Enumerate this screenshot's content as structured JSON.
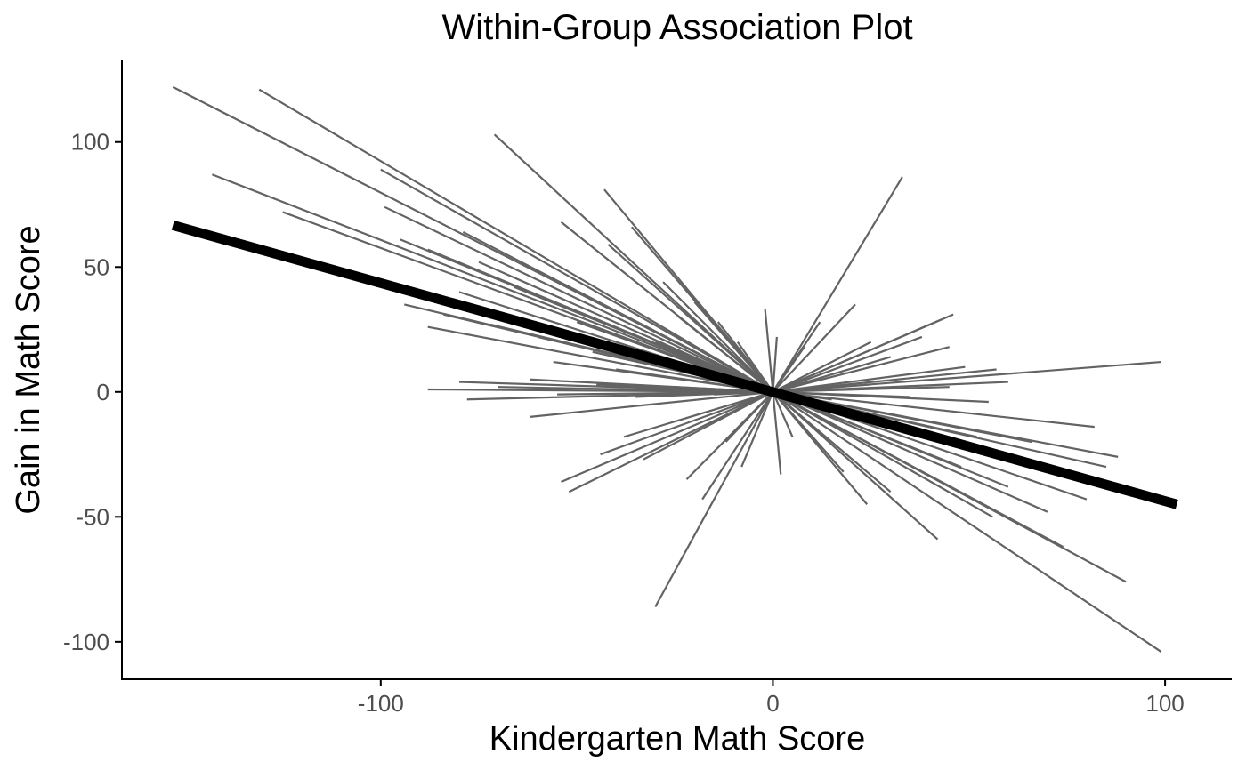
{
  "chart_data": {
    "type": "line",
    "title": "Within-Group Association Plot",
    "xlabel": "Kindergarten Math Score",
    "ylabel": "Gain in Math Score",
    "xlim": [
      -166,
      117
    ],
    "ylim": [
      -115,
      133
    ],
    "x_ticks": [
      {
        "value": -100,
        "label": "-100"
      },
      {
        "value": 0,
        "label": "0"
      },
      {
        "value": 100,
        "label": "100"
      }
    ],
    "y_ticks": [
      {
        "value": 100,
        "label": "100"
      },
      {
        "value": 50,
        "label": "50"
      },
      {
        "value": 0,
        "label": "0"
      },
      {
        "value": -50,
        "label": "-50"
      },
      {
        "value": -100,
        "label": "-100"
      }
    ],
    "grid": false,
    "legend": "none",
    "colors": {
      "group_lines": "#636363",
      "overall_line": "#000000",
      "axis": "#000000",
      "tick_text": "#4d4d4d"
    },
    "overall_line": {
      "x": [
        -153,
        103
      ],
      "y": [
        66.7,
        -45
      ]
    },
    "group_lines": [
      {
        "x": [
          -153,
          0
        ],
        "y": [
          122,
          0
        ]
      },
      {
        "x": [
          -131,
          0
        ],
        "y": [
          121,
          0
        ]
      },
      {
        "x": [
          -143,
          0
        ],
        "y": [
          87,
          0
        ]
      },
      {
        "x": [
          -100,
          0
        ],
        "y": [
          89,
          0
        ]
      },
      {
        "x": [
          -125,
          0
        ],
        "y": [
          72,
          0
        ]
      },
      {
        "x": [
          -99,
          0
        ],
        "y": [
          74,
          0
        ]
      },
      {
        "x": [
          -95,
          0
        ],
        "y": [
          61,
          0
        ]
      },
      {
        "x": [
          -79,
          0
        ],
        "y": [
          64,
          0
        ]
      },
      {
        "x": [
          -71,
          0
        ],
        "y": [
          103,
          0
        ]
      },
      {
        "x": [
          -43,
          0
        ],
        "y": [
          81,
          0
        ]
      },
      {
        "x": [
          -36,
          0
        ],
        "y": [
          66,
          0
        ]
      },
      {
        "x": [
          -54,
          0
        ],
        "y": [
          68,
          0
        ]
      },
      {
        "x": [
          -42,
          0
        ],
        "y": [
          59,
          0
        ]
      },
      {
        "x": [
          -66,
          0
        ],
        "y": [
          42,
          0
        ]
      },
      {
        "x": [
          -75,
          0
        ],
        "y": [
          52,
          0
        ]
      },
      {
        "x": [
          -88,
          0
        ],
        "y": [
          57,
          0
        ]
      },
      {
        "x": [
          -80,
          0
        ],
        "y": [
          40,
          0
        ]
      },
      {
        "x": [
          -94,
          0
        ],
        "y": [
          35,
          0
        ]
      },
      {
        "x": [
          -84,
          0
        ],
        "y": [
          31,
          0
        ]
      },
      {
        "x": [
          -72,
          0
        ],
        "y": [
          27,
          0
        ]
      },
      {
        "x": [
          -88,
          0
        ],
        "y": [
          26,
          0
        ]
      },
      {
        "x": [
          -60,
          0
        ],
        "y": [
          22,
          0
        ]
      },
      {
        "x": [
          -50,
          0
        ],
        "y": [
          28,
          0
        ]
      },
      {
        "x": [
          -46,
          0
        ],
        "y": [
          16,
          0
        ]
      },
      {
        "x": [
          -56,
          0
        ],
        "y": [
          12,
          0
        ]
      },
      {
        "x": [
          -40,
          0
        ],
        "y": [
          9,
          0
        ]
      },
      {
        "x": [
          -28,
          0
        ],
        "y": [
          44,
          0
        ]
      },
      {
        "x": [
          -24,
          0
        ],
        "y": [
          30,
          0
        ]
      },
      {
        "x": [
          -20,
          0
        ],
        "y": [
          36,
          0
        ]
      },
      {
        "x": [
          -30,
          0
        ],
        "y": [
          20,
          0
        ]
      },
      {
        "x": [
          -14,
          0
        ],
        "y": [
          28,
          0
        ]
      },
      {
        "x": [
          -9,
          0
        ],
        "y": [
          20,
          0
        ]
      },
      {
        "x": [
          -6,
          0
        ],
        "y": [
          12,
          0
        ]
      },
      {
        "x": [
          -2,
          0
        ],
        "y": [
          33,
          0
        ]
      },
      {
        "x": [
          1,
          0
        ],
        "y": [
          22,
          0
        ]
      },
      {
        "x": [
          -88,
          0
        ],
        "y": [
          1,
          0
        ]
      },
      {
        "x": [
          -80,
          0
        ],
        "y": [
          4,
          0
        ]
      },
      {
        "x": [
          -78,
          0
        ],
        "y": [
          -3,
          0
        ]
      },
      {
        "x": [
          -70,
          0
        ],
        "y": [
          2,
          0
        ]
      },
      {
        "x": [
          -62,
          0
        ],
        "y": [
          5,
          0
        ]
      },
      {
        "x": [
          -55,
          0
        ],
        "y": [
          -1,
          0
        ]
      },
      {
        "x": [
          -45,
          0
        ],
        "y": [
          3,
          0
        ]
      },
      {
        "x": [
          -35,
          0
        ],
        "y": [
          -2,
          0
        ]
      },
      {
        "x": [
          -25,
          0
        ],
        "y": [
          2,
          0
        ]
      },
      {
        "x": [
          -15,
          0
        ],
        "y": [
          -1,
          0
        ]
      },
      {
        "x": [
          -62,
          0
        ],
        "y": [
          -10,
          0
        ]
      },
      {
        "x": [
          -54,
          0
        ],
        "y": [
          -36,
          0
        ]
      },
      {
        "x": [
          -52,
          0
        ],
        "y": [
          -40,
          0
        ]
      },
      {
        "x": [
          -44,
          0
        ],
        "y": [
          -25,
          0
        ]
      },
      {
        "x": [
          -38,
          0
        ],
        "y": [
          -18,
          0
        ]
      },
      {
        "x": [
          -33,
          0
        ],
        "y": [
          -27,
          0
        ]
      },
      {
        "x": [
          -30,
          0
        ],
        "y": [
          -86,
          0
        ]
      },
      {
        "x": [
          -22,
          0
        ],
        "y": [
          -35,
          0
        ]
      },
      {
        "x": [
          -18,
          0
        ],
        "y": [
          -43,
          0
        ]
      },
      {
        "x": [
          -12,
          0
        ],
        "y": [
          -20,
          0
        ]
      },
      {
        "x": [
          -8,
          0
        ],
        "y": [
          -30,
          0
        ]
      },
      {
        "x": [
          2,
          0
        ],
        "y": [
          -33,
          0
        ]
      },
      {
        "x": [
          33,
          0
        ],
        "y": [
          86,
          0
        ]
      },
      {
        "x": [
          21,
          0
        ],
        "y": [
          35,
          0
        ]
      },
      {
        "x": [
          12,
          0
        ],
        "y": [
          28,
          0
        ]
      },
      {
        "x": [
          8,
          0
        ],
        "y": [
          18,
          0
        ]
      },
      {
        "x": [
          46,
          0
        ],
        "y": [
          31,
          0
        ]
      },
      {
        "x": [
          43,
          0
        ],
        "y": [
          29,
          0
        ]
      },
      {
        "x": [
          38,
          0
        ],
        "y": [
          22,
          0
        ]
      },
      {
        "x": [
          45,
          0
        ],
        "y": [
          18,
          0
        ]
      },
      {
        "x": [
          30,
          0
        ],
        "y": [
          14,
          0
        ]
      },
      {
        "x": [
          25,
          0
        ],
        "y": [
          20,
          0
        ]
      },
      {
        "x": [
          99,
          0
        ],
        "y": [
          12,
          0
        ]
      },
      {
        "x": [
          57,
          0
        ],
        "y": [
          9,
          0
        ]
      },
      {
        "x": [
          49,
          0
        ],
        "y": [
          10,
          0
        ]
      },
      {
        "x": [
          60,
          0
        ],
        "y": [
          4,
          0
        ]
      },
      {
        "x": [
          55,
          0
        ],
        "y": [
          -4,
          0
        ]
      },
      {
        "x": [
          45,
          0
        ],
        "y": [
          2,
          0
        ]
      },
      {
        "x": [
          35,
          0
        ],
        "y": [
          -2,
          0
        ]
      },
      {
        "x": [
          25,
          0
        ],
        "y": [
          3,
          0
        ]
      },
      {
        "x": [
          15,
          0
        ],
        "y": [
          -3,
          0
        ]
      },
      {
        "x": [
          82,
          0
        ],
        "y": [
          -14,
          0
        ]
      },
      {
        "x": [
          88,
          0
        ],
        "y": [
          -26,
          0
        ]
      },
      {
        "x": [
          85,
          0
        ],
        "y": [
          -30,
          0
        ]
      },
      {
        "x": [
          80,
          0
        ],
        "y": [
          -43,
          0
        ]
      },
      {
        "x": [
          70,
          0
        ],
        "y": [
          -48,
          0
        ]
      },
      {
        "x": [
          90,
          0
        ],
        "y": [
          -76,
          0
        ]
      },
      {
        "x": [
          99,
          0
        ],
        "y": [
          -104,
          0
        ]
      },
      {
        "x": [
          74,
          0
        ],
        "y": [
          -62,
          0
        ]
      },
      {
        "x": [
          60,
          0
        ],
        "y": [
          -38,
          0
        ]
      },
      {
        "x": [
          56,
          0
        ],
        "y": [
          -50,
          0
        ]
      },
      {
        "x": [
          42,
          0
        ],
        "y": [
          -59,
          0
        ]
      },
      {
        "x": [
          48,
          0
        ],
        "y": [
          -30,
          0
        ]
      },
      {
        "x": [
          30,
          0
        ],
        "y": [
          -40,
          0
        ]
      },
      {
        "x": [
          24,
          0
        ],
        "y": [
          -45,
          0
        ]
      },
      {
        "x": [
          18,
          0
        ],
        "y": [
          -32,
          0
        ]
      },
      {
        "x": [
          12,
          0
        ],
        "y": [
          -22,
          0
        ]
      },
      {
        "x": [
          5,
          0
        ],
        "y": [
          -18,
          0
        ]
      },
      {
        "x": [
          66,
          0
        ],
        "y": [
          -20,
          0
        ]
      },
      {
        "x": [
          52,
          0
        ],
        "y": [
          -18,
          0
        ]
      }
    ]
  }
}
